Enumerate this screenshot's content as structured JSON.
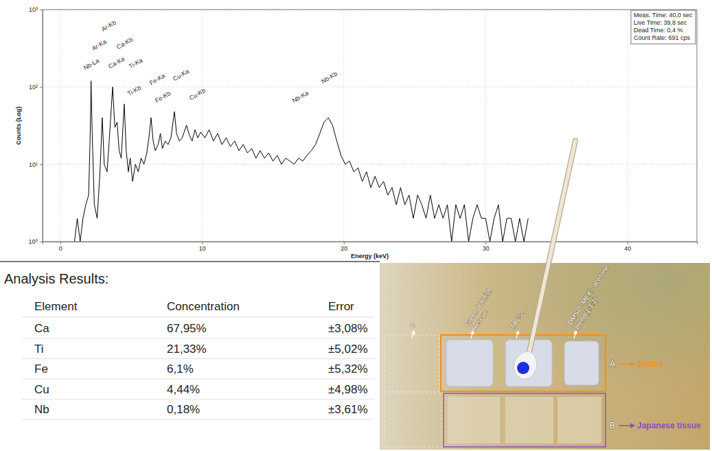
{
  "chart_data": {
    "type": "line",
    "xlabel": "Energy (keV)",
    "ylabel": "Counts (Log)",
    "x": [
      1.0,
      1.2,
      1.4,
      1.6,
      1.8,
      2.0,
      2.1,
      2.17,
      2.25,
      2.4,
      2.6,
      2.8,
      2.96,
      3.1,
      3.3,
      3.45,
      3.69,
      3.85,
      4.01,
      4.15,
      4.3,
      4.51,
      4.65,
      4.8,
      4.93,
      5.1,
      5.3,
      5.5,
      5.7,
      5.9,
      6.1,
      6.25,
      6.4,
      6.55,
      6.7,
      6.9,
      7.06,
      7.2,
      7.4,
      7.6,
      7.8,
      8.05,
      8.2,
      8.4,
      8.6,
      8.9,
      9.1,
      9.3,
      9.5,
      9.7,
      9.9,
      10.2,
      10.5,
      10.8,
      11.1,
      11.4,
      11.7,
      12.0,
      12.3,
      12.6,
      12.9,
      13.2,
      13.5,
      13.8,
      14.1,
      14.4,
      14.7,
      15.0,
      15.3,
      15.6,
      15.9,
      16.2,
      16.5,
      16.8,
      17.1,
      17.4,
      17.7,
      18.0,
      18.3,
      18.6,
      18.9,
      19.2,
      19.5,
      19.8,
      20.1,
      20.4,
      20.7,
      21.0,
      21.3,
      21.6,
      21.9,
      22.2,
      22.5,
      22.8,
      23.1,
      23.4,
      23.7,
      24.0,
      24.3,
      24.6,
      24.9,
      25.2,
      25.5,
      25.8,
      26.1,
      26.4,
      26.7,
      27.0,
      27.3,
      27.6,
      27.9,
      28.2,
      28.5,
      28.8,
      29.1,
      29.4,
      29.7,
      30.0,
      30.3,
      30.6,
      30.9,
      31.2,
      31.5,
      31.8,
      32.1,
      32.4,
      32.7,
      33.0
    ],
    "values": [
      1,
      2,
      1,
      2,
      3,
      4,
      20,
      120,
      25,
      3,
      2,
      8,
      40,
      10,
      8,
      20,
      100,
      30,
      35,
      15,
      12,
      60,
      15,
      8,
      12,
      6,
      10,
      8,
      12,
      10,
      14,
      22,
      40,
      20,
      15,
      18,
      25,
      16,
      20,
      18,
      22,
      48,
      25,
      20,
      22,
      32,
      24,
      20,
      28,
      22,
      26,
      22,
      28,
      20,
      25,
      18,
      22,
      17,
      20,
      15,
      18,
      14,
      16,
      12,
      15,
      12,
      14,
      11,
      13,
      10,
      12,
      11,
      10,
      12,
      11,
      13,
      15,
      18,
      25,
      35,
      40,
      32,
      20,
      13,
      10,
      11,
      8,
      9,
      6,
      8,
      5,
      7,
      5,
      6,
      4,
      5,
      3,
      5,
      3,
      4,
      2,
      4,
      3,
      2,
      4,
      2,
      3,
      2,
      3,
      1,
      3,
      2,
      3,
      1,
      2,
      3,
      2,
      2,
      1,
      2,
      3,
      1,
      2,
      2,
      1,
      2,
      1,
      2
    ],
    "color": "#000000",
    "xlim": [
      -1.25,
      44.9
    ],
    "ylim": [
      1,
      1000
    ],
    "xticks": [
      0,
      10,
      20,
      30,
      40
    ],
    "yticks": [
      {
        "value": 1,
        "label": "10⁰"
      },
      {
        "value": 10,
        "label": "10¹"
      },
      {
        "value": 100,
        "label": "10²"
      },
      {
        "value": 1000,
        "label": "10³"
      }
    ],
    "log": "y",
    "grid": true,
    "annotations": [
      {
        "text": "Nb-La",
        "x": 1.75,
        "y": 165
      },
      {
        "text": "Ar-Ka",
        "x": 2.33,
        "y": 293
      },
      {
        "text": "Ar-Kb",
        "x": 3.01,
        "y": 519
      },
      {
        "text": "Ca-Ka",
        "x": 3.5,
        "y": 172
      },
      {
        "text": "Ca-Kb",
        "x": 4.08,
        "y": 305
      },
      {
        "text": "Ti-Ka",
        "x": 4.95,
        "y": 172
      },
      {
        "text": "Ti-Kb",
        "x": 4.85,
        "y": 76
      },
      {
        "text": "Fe-Ka",
        "x": 6.4,
        "y": 105
      },
      {
        "text": "Fe-Kb",
        "x": 6.79,
        "y": 62
      },
      {
        "text": "Cu-Ka",
        "x": 8.05,
        "y": 119
      },
      {
        "text": "Cu-Kb",
        "x": 9.21,
        "y": 67
      },
      {
        "text": "Nb-Ka",
        "x": 16.47,
        "y": 62
      },
      {
        "text": "Nb-Kb",
        "x": 18.51,
        "y": 110
      }
    ],
    "info_box": [
      "Meas. Time: 40,0 sec",
      "Live Time: 39,8 sec",
      "Dead Time: 0,4 %",
      "Count Rate: 691 cps"
    ]
  },
  "table": {
    "title": "Analysis Results:",
    "columns": [
      "Element",
      "Concentration",
      "Error"
    ],
    "rows": [
      [
        "Ca",
        "67,95%",
        "±3,08%"
      ],
      [
        "Ti",
        "21,33%",
        "±5,02%"
      ],
      [
        "Fe",
        "6,1%",
        "±5,32%"
      ],
      [
        "Cu",
        "4,44%",
        "±4,98%"
      ],
      [
        "Nb",
        "0,18%",
        "±3,61%"
      ]
    ]
  },
  "photo": {
    "column_labels": [
      "0",
      "Green Varnish Rescue",
      "TAC-2",
      "DMSO–MEK– acetone blend(1:1:1)"
    ],
    "row_labels": [
      {
        "letter": "A",
        "label": "Swabs"
      },
      {
        "letter": "B",
        "label": "Japanese tissue"
      }
    ]
  }
}
